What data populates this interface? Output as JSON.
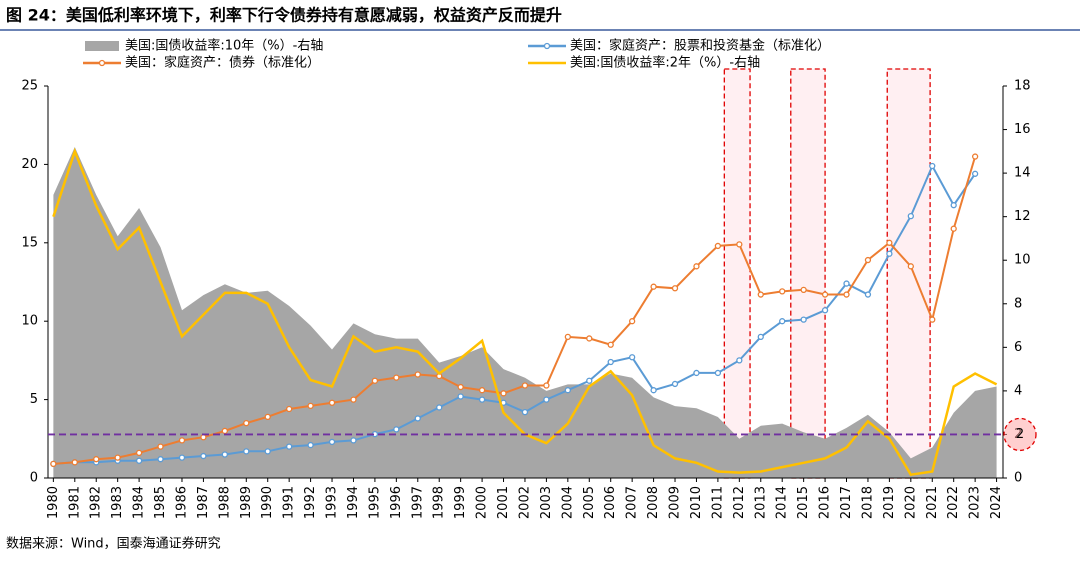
{
  "chart_data": {
    "type": "line",
    "title": "图 24：美国低利率环境下，利率下行令债券持有意愿减弱，权益资产反而提升",
    "source": "数据来源：Wind，国泰海通证券研究",
    "x": [
      1980,
      1981,
      1982,
      1983,
      1984,
      1985,
      1986,
      1987,
      1988,
      1989,
      1990,
      1991,
      1992,
      1993,
      1994,
      1995,
      1996,
      1997,
      1998,
      1999,
      2000,
      2001,
      2002,
      2003,
      2004,
      2005,
      2006,
      2007,
      2008,
      2009,
      2010,
      2011,
      2012,
      2013,
      2014,
      2015,
      2016,
      2017,
      2018,
      2019,
      2020,
      2021,
      2022,
      2023,
      2024
    ],
    "series": [
      {
        "name": "美国:国债收益率:10年（%）-右轴",
        "color": "#a6a6a6",
        "style": "area",
        "axis": "y2",
        "values": [
          13.0,
          15.2,
          13.0,
          11.1,
          12.4,
          10.6,
          7.7,
          8.4,
          8.9,
          8.5,
          8.6,
          7.9,
          7.0,
          5.9,
          7.1,
          6.6,
          6.4,
          6.4,
          5.3,
          5.6,
          6.0,
          5.0,
          4.6,
          4.0,
          4.3,
          4.3,
          4.8,
          4.6,
          3.7,
          3.3,
          3.2,
          2.8,
          1.8,
          2.4,
          2.5,
          2.1,
          1.8,
          2.3,
          2.9,
          2.1,
          0.9,
          1.4,
          3.0,
          4.0,
          4.2
        ]
      },
      {
        "name": "美国：家庭资产：股票和投资基金（标准化）",
        "color": "#5b9bd5",
        "style": "marker-line",
        "values": [
          0.9,
          1.0,
          1.0,
          1.1,
          1.1,
          1.2,
          1.3,
          1.4,
          1.5,
          1.7,
          1.7,
          2.0,
          2.1,
          2.3,
          2.4,
          2.8,
          3.1,
          3.8,
          4.5,
          5.2,
          5.0,
          4.8,
          4.2,
          5.0,
          5.6,
          6.2,
          7.4,
          7.7,
          5.6,
          6.0,
          6.7,
          6.7,
          7.5,
          9.0,
          10.0,
          10.1,
          10.7,
          12.4,
          11.7,
          14.3,
          16.7,
          19.9,
          17.4,
          19.4,
          null
        ]
      },
      {
        "name": "美国：家庭资产：债券（标准化）",
        "color": "#ed7d31",
        "style": "marker-line",
        "values": [
          0.9,
          1.0,
          1.2,
          1.3,
          1.6,
          2.0,
          2.4,
          2.6,
          3.0,
          3.5,
          3.9,
          4.4,
          4.6,
          4.8,
          5.0,
          6.2,
          6.4,
          6.6,
          6.5,
          5.8,
          5.6,
          5.4,
          5.9,
          5.9,
          9.0,
          8.9,
          8.5,
          10.0,
          12.2,
          12.1,
          13.5,
          14.8,
          14.9,
          11.7,
          11.9,
          12.0,
          11.7,
          11.7,
          13.9,
          15.0,
          13.5,
          10.1,
          15.9,
          20.5,
          null
        ]
      },
      {
        "name": "美国:国债收益率:2年（%）-右轴",
        "color": "#ffc000",
        "style": "line",
        "axis": "y2",
        "values": [
          12.0,
          15.0,
          12.5,
          10.5,
          11.5,
          9.0,
          6.5,
          7.5,
          8.5,
          8.5,
          8.0,
          6.0,
          4.5,
          4.2,
          6.5,
          5.8,
          6.0,
          5.8,
          4.8,
          5.5,
          6.3,
          3.0,
          2.0,
          1.6,
          2.5,
          4.2,
          4.9,
          3.8,
          1.5,
          0.9,
          0.7,
          0.3,
          0.25,
          0.3,
          0.5,
          0.7,
          0.9,
          1.4,
          2.6,
          1.8,
          0.15,
          0.3,
          4.2,
          4.8,
          4.3
        ]
      }
    ],
    "xlim": [
      1979.75,
      2024.3
    ],
    "xticks": [
      1980,
      1981,
      1982,
      1983,
      1984,
      1985,
      1986,
      1987,
      1988,
      1989,
      1990,
      1991,
      1992,
      1993,
      1994,
      1995,
      1996,
      1997,
      1998,
      1999,
      2000,
      2001,
      2002,
      2003,
      2004,
      2005,
      2006,
      2007,
      2008,
      2009,
      2010,
      2011,
      2012,
      2013,
      2014,
      2015,
      2016,
      2017,
      2018,
      2019,
      2020,
      2021,
      2022,
      2023,
      2024
    ],
    "ylim": [
      0,
      25
    ],
    "yticks": [
      0,
      5,
      10,
      15,
      20,
      25
    ],
    "y2lim": [
      0,
      18
    ],
    "y2ticks": [
      0,
      2,
      4,
      6,
      8,
      10,
      12,
      14,
      16,
      18
    ],
    "shaded_periods": [
      [
        2011.3,
        2012.5
      ],
      [
        2014.4,
        2016.0
      ],
      [
        2018.9,
        2020.9
      ]
    ],
    "reference_line_y2": 2
  }
}
